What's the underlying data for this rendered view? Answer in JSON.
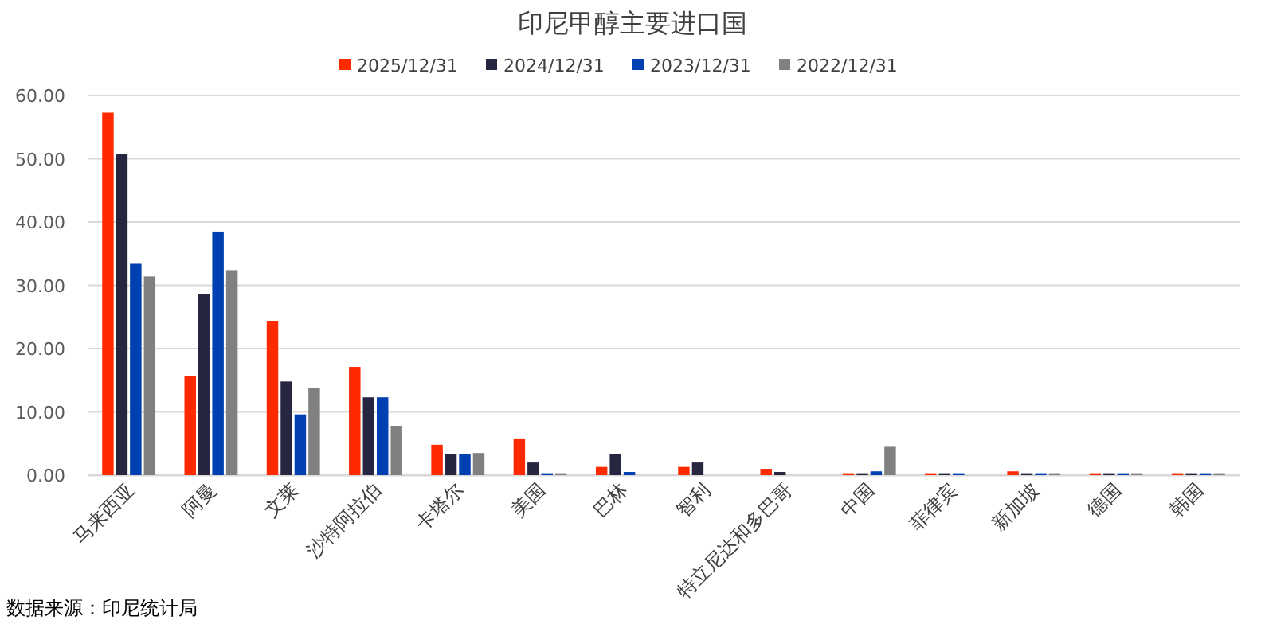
{
  "chart_data": {
    "type": "bar",
    "title": "印尼甲醇主要进口国",
    "categories": [
      "马来西亚",
      "阿曼",
      "文莱",
      "沙特阿拉伯",
      "卡塔尔",
      "美国",
      "巴林",
      "智利",
      "特立尼达和多巴哥",
      "中国",
      "菲律宾",
      "新加坡",
      "德国",
      "韩国"
    ],
    "series": [
      {
        "name": "2025/12/31",
        "color": "#ff2a00",
        "values": [
          57.3,
          15.6,
          24.4,
          17.1,
          4.8,
          5.8,
          1.3,
          1.3,
          1.0,
          0.3,
          0.3,
          0.6,
          0.3,
          0.3
        ]
      },
      {
        "name": "2024/12/31",
        "color": "#262640",
        "values": [
          50.8,
          28.6,
          14.8,
          12.3,
          3.3,
          2.0,
          3.3,
          2.0,
          0.5,
          0.3,
          0.3,
          0.3,
          0.3,
          0.3
        ]
      },
      {
        "name": "2023/12/31",
        "color": "#0040b0",
        "values": [
          33.4,
          38.5,
          9.6,
          12.3,
          3.3,
          0.3,
          0.5,
          0,
          0,
          0.6,
          0.3,
          0.3,
          0.3,
          0.3
        ]
      },
      {
        "name": "2022/12/31",
        "color": "#808080",
        "values": [
          31.4,
          32.4,
          13.8,
          7.8,
          3.5,
          0.3,
          0,
          0,
          0,
          4.6,
          0,
          0.3,
          0.3,
          0.3
        ]
      }
    ],
    "ylim": [
      0,
      60
    ],
    "yticks": [
      {
        "value": 0,
        "label": "0.00"
      },
      {
        "value": 10,
        "label": "10.00"
      },
      {
        "value": 20,
        "label": "20.00"
      },
      {
        "value": 30,
        "label": "30.00"
      },
      {
        "value": 40,
        "label": "40.00"
      },
      {
        "value": 50,
        "label": "50.00"
      },
      {
        "value": 60,
        "label": "60.00"
      }
    ],
    "grid": "y",
    "legend": "top",
    "annotations": [
      "数据来源：印尼统计局"
    ]
  }
}
